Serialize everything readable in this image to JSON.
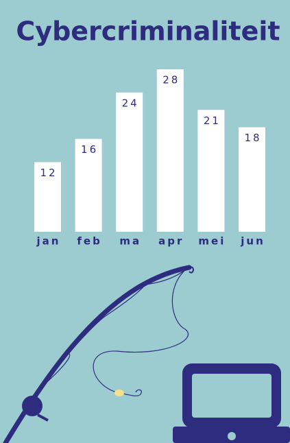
{
  "chart_data": {
    "type": "bar",
    "title": "Cybercriminaliteit",
    "categories": [
      "jan",
      "feb",
      "ma",
      "apr",
      "mei",
      "jun"
    ],
    "values": [
      12,
      16,
      24,
      28,
      21,
      18
    ],
    "color": "#ffffff"
  }
}
